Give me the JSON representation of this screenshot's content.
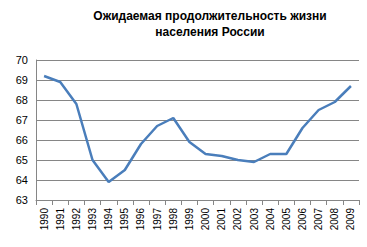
{
  "chart_data": {
    "type": "line",
    "title": "Ожидаемая продолжительность жизни\nнаселения России",
    "categories": [
      "1990",
      "1991",
      "1992",
      "1993",
      "1994",
      "1995",
      "1996",
      "1997",
      "1998",
      "1999",
      "2000",
      "2001",
      "2002",
      "2003",
      "2004",
      "2005",
      "2006",
      "2007",
      "2008",
      "2009"
    ],
    "values": [
      69.2,
      68.9,
      67.8,
      65.0,
      63.9,
      64.5,
      65.8,
      66.7,
      67.1,
      65.9,
      65.3,
      65.2,
      65.0,
      64.9,
      65.3,
      65.3,
      66.6,
      67.5,
      67.9,
      68.7
    ],
    "color": "#4a7ebb",
    "ylim": [
      63,
      70
    ],
    "yticks": [
      63,
      64,
      65,
      66,
      67,
      68,
      69,
      70
    ],
    "grid": true
  }
}
